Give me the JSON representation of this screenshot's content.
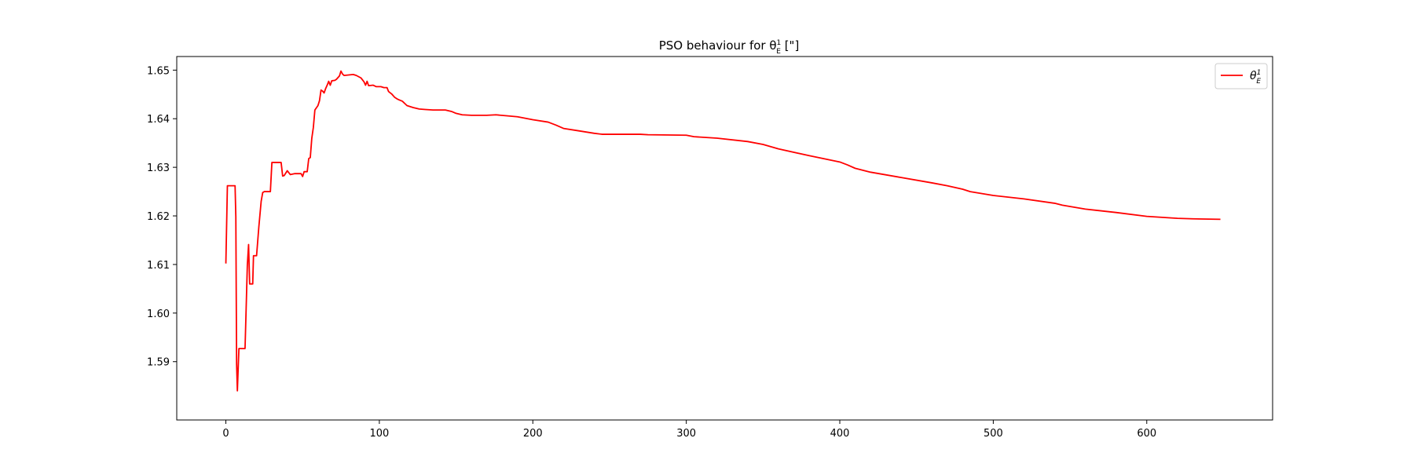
{
  "chart_data": {
    "type": "line",
    "title": "PSO behaviour for θ",
    "title_sub": "E",
    "title_sup": "1",
    "title_unit": "[\"]",
    "legend": {
      "label": "θ",
      "label_sub": "E",
      "label_sup": "1",
      "placement": "top-right"
    },
    "xlim": [
      -32,
      682
    ],
    "ylim": [
      1.578,
      1.6528
    ],
    "xticks": [
      0,
      100,
      200,
      300,
      400,
      500,
      600
    ],
    "xtick_labels": [
      "0",
      "100",
      "200",
      "300",
      "400",
      "500",
      "600"
    ],
    "yticks": [
      1.59,
      1.6,
      1.61,
      1.62,
      1.63,
      1.64,
      1.65
    ],
    "ytick_labels": [
      "1.59",
      "1.60",
      "1.61",
      "1.62",
      "1.63",
      "1.64",
      "1.65"
    ],
    "grid": false,
    "series": [
      {
        "name": "θ",
        "color": "#ff0000",
        "points": [
          [
            0,
            1.6102
          ],
          [
            1,
            1.6262
          ],
          [
            6,
            1.6262
          ],
          [
            6.5,
            1.6198
          ],
          [
            7,
            1.5895
          ],
          [
            7.5,
            1.584
          ],
          [
            8.5,
            1.5927
          ],
          [
            12.5,
            1.5927
          ],
          [
            14,
            1.6099
          ],
          [
            14.8,
            1.6141
          ],
          [
            15.5,
            1.606
          ],
          [
            17.5,
            1.606
          ],
          [
            18,
            1.6118
          ],
          [
            20,
            1.6118
          ],
          [
            21.5,
            1.6178
          ],
          [
            23,
            1.623
          ],
          [
            24,
            1.6248
          ],
          [
            25,
            1.625
          ],
          [
            29,
            1.625
          ],
          [
            30,
            1.631
          ],
          [
            36,
            1.631
          ],
          [
            37,
            1.6282
          ],
          [
            38,
            1.6283
          ],
          [
            40,
            1.6293
          ],
          [
            42,
            1.6285
          ],
          [
            45,
            1.6287
          ],
          [
            49,
            1.6287
          ],
          [
            50,
            1.6281
          ],
          [
            51,
            1.6291
          ],
          [
            53,
            1.6291
          ],
          [
            54,
            1.6318
          ],
          [
            55,
            1.632
          ],
          [
            56,
            1.636
          ],
          [
            57,
            1.6382
          ],
          [
            58,
            1.6418
          ],
          [
            60,
            1.6427
          ],
          [
            61,
            1.6437
          ],
          [
            62,
            1.6459
          ],
          [
            63,
            1.6457
          ],
          [
            64,
            1.6453
          ],
          [
            65,
            1.6462
          ],
          [
            66,
            1.6469
          ],
          [
            67,
            1.6477
          ],
          [
            68,
            1.6469
          ],
          [
            69,
            1.6478
          ],
          [
            71,
            1.6479
          ],
          [
            72,
            1.6481
          ],
          [
            74,
            1.6488
          ],
          [
            75,
            1.6498
          ],
          [
            76,
            1.6492
          ],
          [
            77,
            1.6489
          ],
          [
            80,
            1.649
          ],
          [
            83,
            1.6491
          ],
          [
            85,
            1.6489
          ],
          [
            88,
            1.6484
          ],
          [
            90,
            1.6476
          ],
          [
            91,
            1.6469
          ],
          [
            92,
            1.6477
          ],
          [
            93,
            1.6468
          ],
          [
            96,
            1.6469
          ],
          [
            98,
            1.6466
          ],
          [
            101,
            1.6466
          ],
          [
            103,
            1.6464
          ],
          [
            105,
            1.6464
          ],
          [
            106,
            1.6456
          ],
          [
            108,
            1.6451
          ],
          [
            110,
            1.6444
          ],
          [
            112,
            1.644
          ],
          [
            115,
            1.6436
          ],
          [
            118,
            1.6427
          ],
          [
            122,
            1.6423
          ],
          [
            126,
            1.642
          ],
          [
            130,
            1.6419
          ],
          [
            135,
            1.6418
          ],
          [
            143,
            1.6418
          ],
          [
            147,
            1.6415
          ],
          [
            150,
            1.6411
          ],
          [
            154,
            1.6408
          ],
          [
            160,
            1.6407
          ],
          [
            170,
            1.6407
          ],
          [
            176,
            1.6408
          ],
          [
            183,
            1.6406
          ],
          [
            190,
            1.6404
          ],
          [
            200,
            1.6398
          ],
          [
            210,
            1.6393
          ],
          [
            215,
            1.6387
          ],
          [
            220,
            1.638
          ],
          [
            230,
            1.6375
          ],
          [
            240,
            1.637
          ],
          [
            245,
            1.6368
          ],
          [
            255,
            1.6368
          ],
          [
            270,
            1.6368
          ],
          [
            275,
            1.6367
          ],
          [
            300,
            1.6366
          ],
          [
            305,
            1.6363
          ],
          [
            320,
            1.636
          ],
          [
            340,
            1.6353
          ],
          [
            350,
            1.6347
          ],
          [
            360,
            1.6338
          ],
          [
            380,
            1.6324
          ],
          [
            400,
            1.6311
          ],
          [
            405,
            1.6305
          ],
          [
            410,
            1.6298
          ],
          [
            420,
            1.629
          ],
          [
            440,
            1.6279
          ],
          [
            460,
            1.6268
          ],
          [
            470,
            1.6262
          ],
          [
            480,
            1.6255
          ],
          [
            485,
            1.625
          ],
          [
            500,
            1.6242
          ],
          [
            520,
            1.6235
          ],
          [
            540,
            1.6226
          ],
          [
            545,
            1.6222
          ],
          [
            560,
            1.6214
          ],
          [
            580,
            1.6207
          ],
          [
            600,
            1.6199
          ],
          [
            620,
            1.6195
          ],
          [
            630,
            1.6194
          ],
          [
            648,
            1.6193
          ]
        ]
      }
    ]
  }
}
